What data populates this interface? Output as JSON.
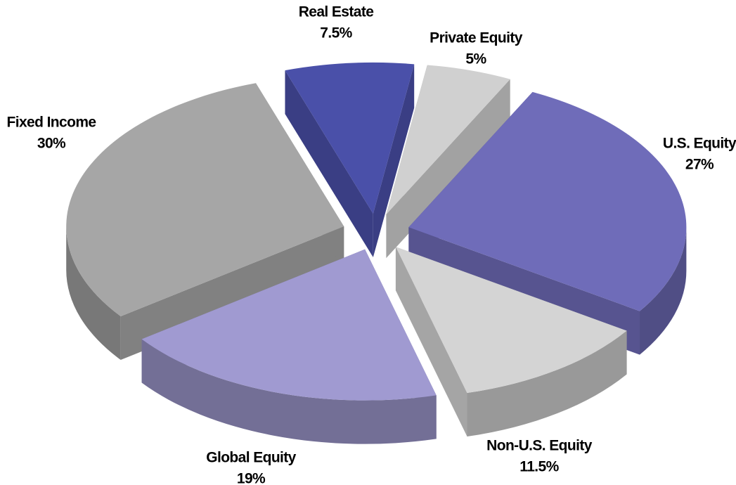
{
  "chart_data": {
    "type": "pie3d",
    "categories": [
      "Real Estate",
      "Private Equity",
      "U.S. Equity",
      "Non-U.S. Equity",
      "Global Equity",
      "Fixed Income"
    ],
    "values": [
      7.5,
      5,
      27,
      11.5,
      19,
      30
    ],
    "value_labels": [
      "7.5%",
      "5%",
      "27%",
      "11.5%",
      "19%",
      "30%"
    ],
    "colors": [
      "#4a50a9",
      "#d0d0d0",
      "#6f6cb9",
      "#d4d4d4",
      "#a09ad1",
      "#a6a6a6"
    ]
  }
}
